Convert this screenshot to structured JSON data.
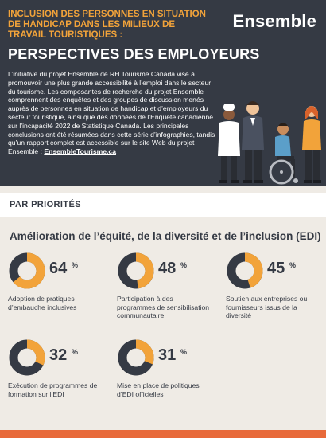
{
  "header": {
    "kicker": "INCLUSION DES PERSONNES EN SITUATION DE HANDICAP DANS LES MILIEUX DE TRAVAIL TOURISTIQUES :",
    "title": "PERSPECTIVES DES EMPLOYEURS",
    "brand": "Ensemble",
    "intro": "L’initiative du projet Ensemble de RH Tourisme Canada vise à promouvoir une plus grande accessibilité à l’emploi dans le secteur du tourisme. Les composantes de recherche du projet Ensemble comprennent des enquêtes et des groupes de discussion menés auprès de personnes en situation de handicap et d’employeurs du secteur touristique, ainsi que des données de l’Enquête canadienne sur l’incapacité 2022 de Statistique Canada. Les principales conclusions ont été résumées dans cette série d’infographies, tandis qu’un rapport complet est accessible sur le site Web du projet Ensemble : ",
    "link": "EnsembleTourisme.ca",
    "illustration_icon": "people-group-illustration"
  },
  "section": {
    "label": "PAR PRIORITÉS",
    "subhead": "Amélioration de l’équité, de la diversité et de l’inclusion (EDI)"
  },
  "stats": [
    {
      "value": "64",
      "unit": "%",
      "fraction": 0.64,
      "label": "Adoption de pratiques d’embauche inclusives"
    },
    {
      "value": "48",
      "unit": "%",
      "fraction": 0.48,
      "label": "Participation à des programmes de sensibilisation communautaire"
    },
    {
      "value": "45",
      "unit": "%",
      "fraction": 0.45,
      "label": "Soutien aux entreprises ou fournisseurs issus de la diversité"
    },
    {
      "value": "32",
      "unit": "%",
      "fraction": 0.32,
      "label": "Exécution de programmes de formation sur l’EDI"
    },
    {
      "value": "31",
      "unit": "%",
      "fraction": 0.31,
      "label": "Mise en place de politiques d’EDI officielles"
    }
  ],
  "colors": {
    "dark": "#353a44",
    "accent": "#f2a33a",
    "background": "#efebe5",
    "footer": "#e86a3a"
  }
}
